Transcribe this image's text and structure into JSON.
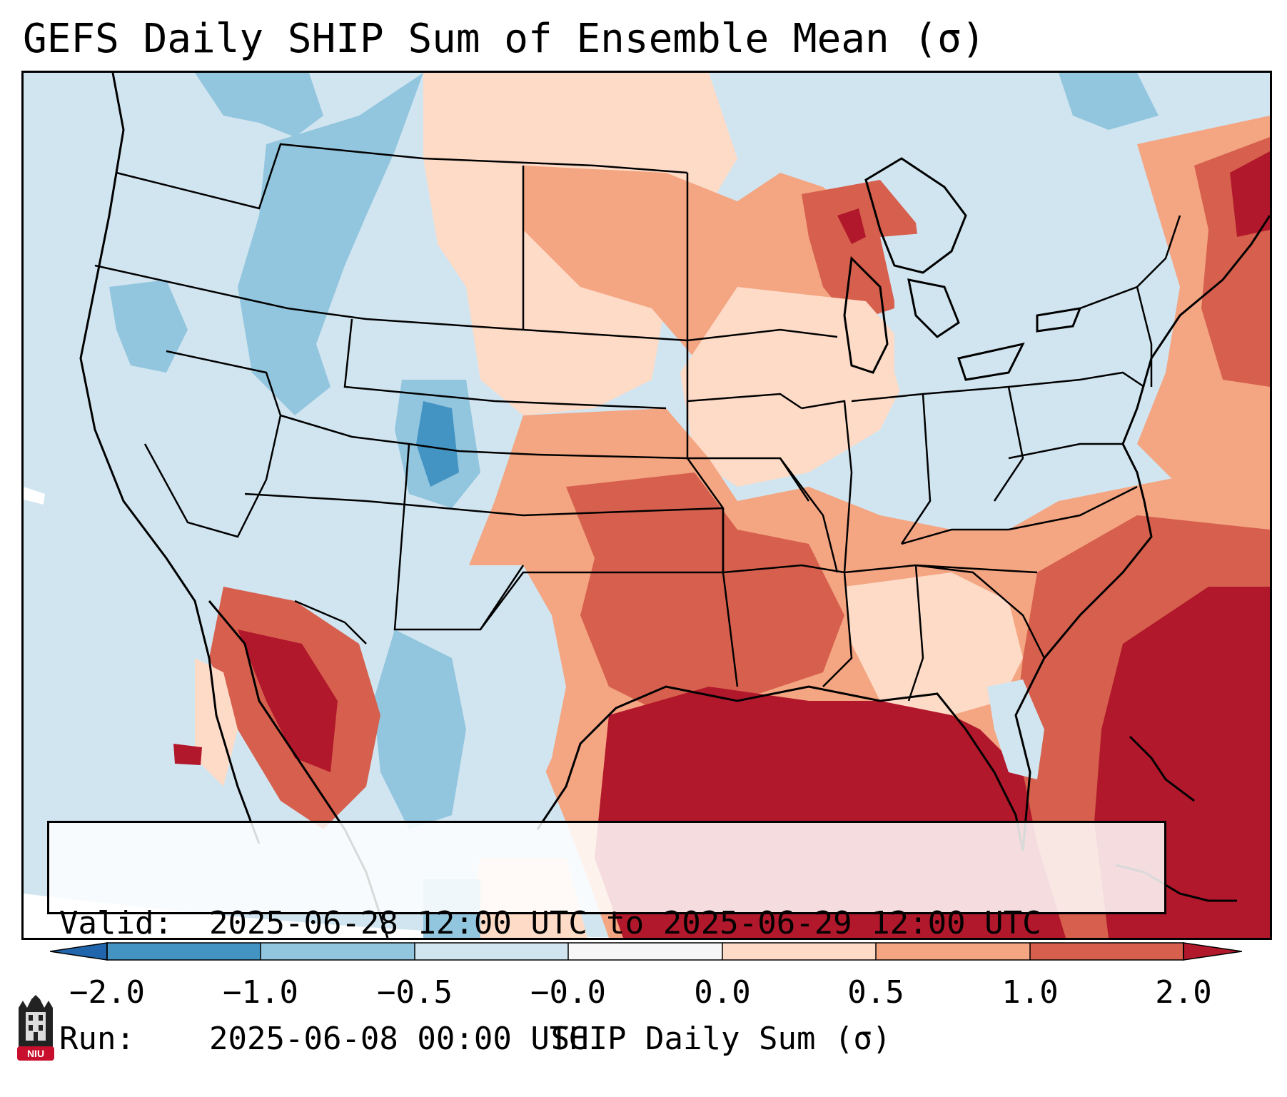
{
  "title": "GEFS Daily SHIP Sum of Ensemble Mean (σ)",
  "info": {
    "valid_key": "Valid:",
    "valid_value": "2025-06-28 12:00 UTC to 2025-06-29 12:00 UTC",
    "run_key": "Run:",
    "run_value": "2025-06-08 00:00 UTC"
  },
  "colorbar": {
    "label": "SHIP Daily Sum (σ)",
    "ticks": [
      "−2.0",
      "−1.0",
      "−0.5",
      "−0.0",
      "0.0",
      "0.5",
      "1.0",
      "2.0"
    ],
    "colors": [
      "#4393c3",
      "#92c5de",
      "#d1e5f0",
      "#f7f7f7",
      "#fddbc7",
      "#f4a582",
      "#d6604d",
      "#b2182b"
    ]
  },
  "logo": {
    "text": "NIU"
  },
  "colors": {
    "strong_neg": "#4393c3",
    "neg": "#92c5de",
    "weak_neg": "#d1e5f0",
    "weak_pos": "#fddbc7",
    "pos": "#f4a582",
    "strong_pos": "#d6604d",
    "very_strong_pos": "#b2182b"
  }
}
